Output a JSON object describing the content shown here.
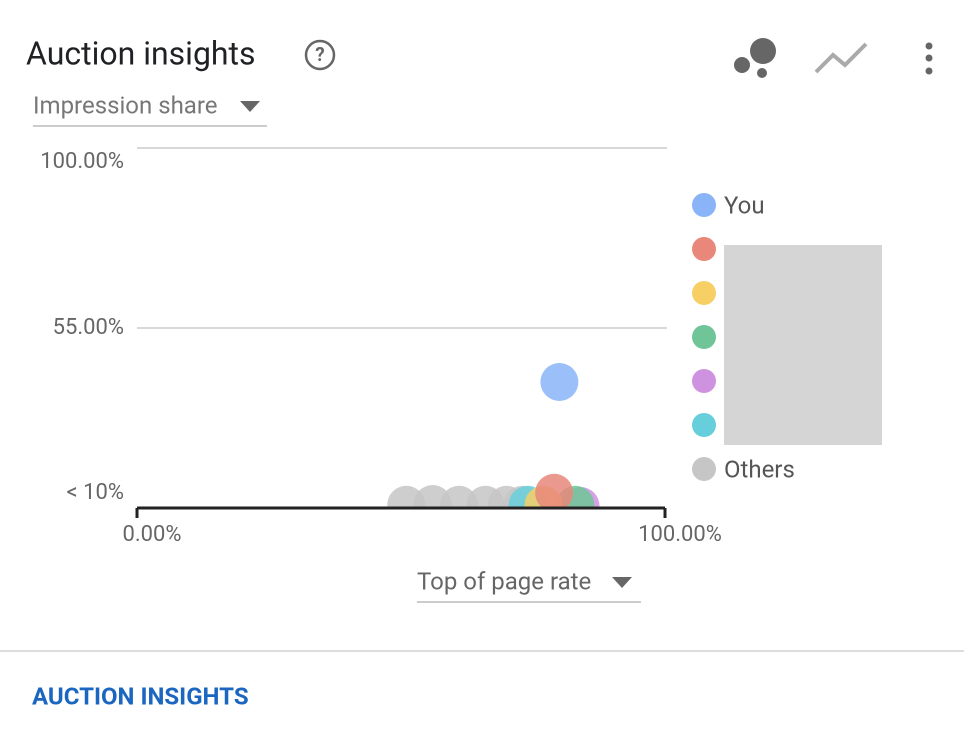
{
  "header": {
    "title": "Auction insights",
    "metric": "Impression share"
  },
  "chart_data": {
    "type": "scatter",
    "x_label": "Top of page rate",
    "xlim": [
      0,
      100
    ],
    "xticks": [
      {
        "value": 0,
        "label": "0.00%"
      },
      {
        "value": 100,
        "label": "100.00%"
      }
    ],
    "ylim": [
      10,
      100
    ],
    "yticks": [
      {
        "value": 100,
        "label": "100.00%"
      },
      {
        "value": 55,
        "label": "55.00%"
      },
      {
        "value": 10,
        "label": "< 10%"
      }
    ],
    "grid": true,
    "series": [
      {
        "name": "You",
        "color": "#8ab4f8",
        "x": [
          80
        ],
        "values": [
          41.5
        ]
      },
      {
        "name": null,
        "color": "#e8877a",
        "x": [
          79
        ],
        "values": [
          13.8
        ]
      },
      {
        "name": null,
        "color": "#f7cf65",
        "x": [
          77
        ],
        "values": [
          10.8
        ]
      },
      {
        "name": null,
        "color": "#6fc597",
        "x": [
          83
        ],
        "values": [
          10.8
        ]
      },
      {
        "name": null,
        "color": "#cf92e0",
        "x": [
          84
        ],
        "values": [
          10.5
        ]
      },
      {
        "name": null,
        "color": "#66cfdb",
        "x": [
          74
        ],
        "values": [
          10.8
        ]
      },
      {
        "name": "Others",
        "color": "#c6c6c6",
        "x": [
          51,
          56,
          61,
          66,
          70,
          73
        ],
        "values": [
          10.8,
          11,
          10.8,
          10.8,
          10.8,
          10.8
        ]
      }
    ]
  },
  "footer": {
    "link": "AUCTION INSIGHTS"
  }
}
